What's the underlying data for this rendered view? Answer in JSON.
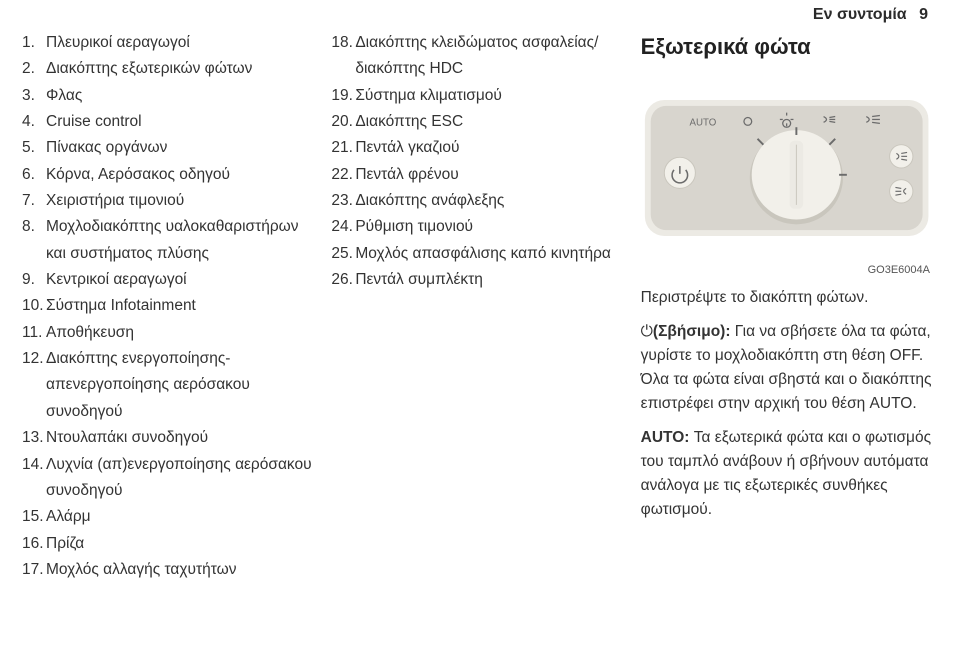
{
  "header": {
    "title": "Εν συντομία",
    "page_number": "9"
  },
  "col1": {
    "items": [
      {
        "n": "1.",
        "t": "Πλευρικοί αεραγωγοί"
      },
      {
        "n": "2.",
        "t": "Διακόπτης εξωτερικών φώτων"
      },
      {
        "n": "3.",
        "t": "Φλας"
      },
      {
        "n": "4.",
        "t": "Cruise control"
      },
      {
        "n": "5.",
        "t": "Πίνακας οργάνων"
      },
      {
        "n": "6.",
        "t": "Κόρνα, Αερόσακος οδηγού"
      },
      {
        "n": "7.",
        "t": "Χειριστήρια τιμονιού"
      },
      {
        "n": "8.",
        "t": "Μοχλοδιακόπτης υαλοκαθαριστήρων και συστήματος πλύσης"
      },
      {
        "n": "9.",
        "t": "Κεντρικοί αεραγωγοί"
      },
      {
        "n": "10.",
        "t": "Σύστημα Infotainment"
      },
      {
        "n": "11.",
        "t": "Αποθήκευση"
      },
      {
        "n": "12.",
        "t": "Διακόπτης ενεργοποίησης-απενεργοποίησης αερόσακου συνοδηγού"
      },
      {
        "n": "13.",
        "t": "Ντουλαπάκι συνοδηγού"
      },
      {
        "n": "14.",
        "t": "Λυχνία (απ)ενεργοποίησης αερόσακου συνοδηγού"
      },
      {
        "n": "15.",
        "t": "Αλάρμ"
      },
      {
        "n": "16.",
        "t": "Πρίζα"
      },
      {
        "n": "17.",
        "t": "Μοχλός αλλαγής ταχυτήτων"
      }
    ]
  },
  "col2": {
    "items": [
      {
        "n": "18.",
        "t": "Διακόπτης κλειδώματος ασφαλείας/διακόπτης HDC"
      },
      {
        "n": "19.",
        "t": "Σύστημα κλιματισμού"
      },
      {
        "n": "20.",
        "t": "Διακόπτης ESC"
      },
      {
        "n": "21.",
        "t": "Πεντάλ γκαζιού"
      },
      {
        "n": "22.",
        "t": "Πεντάλ φρένου"
      },
      {
        "n": "23.",
        "t": "Διακόπτης ανάφλεξης"
      },
      {
        "n": "24.",
        "t": "Ρύθμιση τιμονιού"
      },
      {
        "n": "25.",
        "t": "Μοχλός απασφάλισης καπό κινητήρα"
      },
      {
        "n": "26.",
        "t": "Πεντάλ συμπλέκτη"
      }
    ]
  },
  "col3": {
    "heading": "Εξωτερικά φώτα",
    "diagram": {
      "labels": {
        "auto": "AUTO"
      },
      "colors": {
        "panel": "#d8d5ce",
        "panel_light": "#eceae4",
        "knob": "#f2f0ea",
        "knob_shadow": "#c9c6bd",
        "marks": "#6b6b6b"
      }
    },
    "figure_code": "GO3E6004A",
    "body": {
      "p1": "Περιστρέψτε το διακόπτη φώτων.",
      "p2_lead_symbol": "⏻",
      "p2_lead": "(Σβήσιμο):",
      "p2": " Για να σβήσετε όλα τα φώτα, γυρίστε το μοχλοδιακόπτη στη θέση OFF. Όλα τα φώτα είναι σβηστά και ο διακόπτης επιστρέφει στην αρχική του θέση AUTO.",
      "p3_lead": "AUTO:",
      "p3": " Τα εξωτερικά φώτα και ο φωτισμός του ταμπλό ανάβουν ή σβήνουν αυτόματα ανάλογα με τις εξωτερικές συνθήκες φωτισμού."
    }
  }
}
